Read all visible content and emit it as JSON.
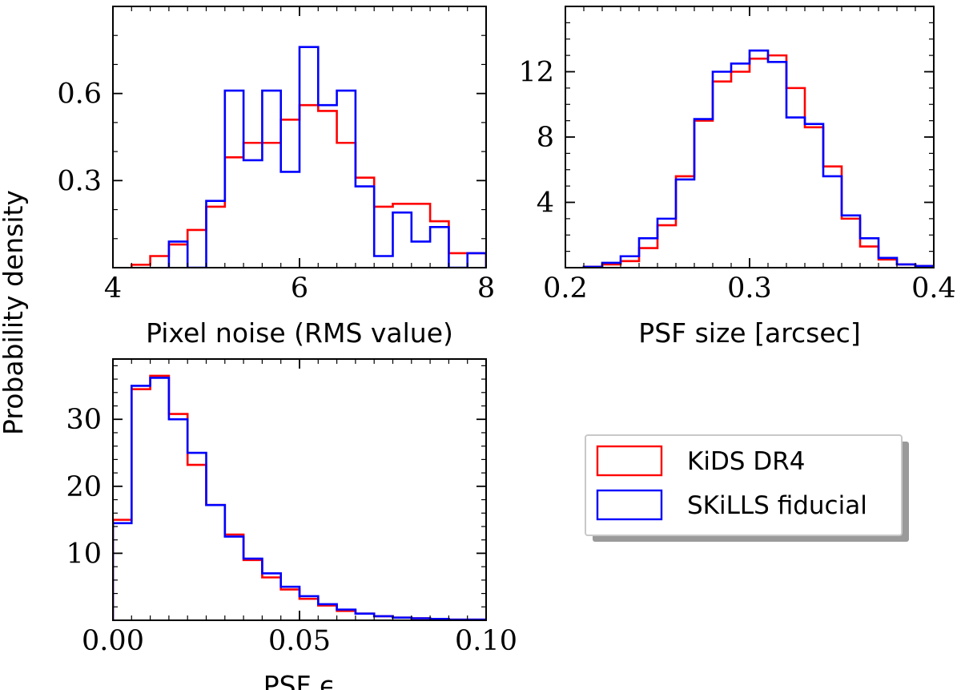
{
  "figure": {
    "shared_ylabel": "Probability density",
    "colors": {
      "kids": "#ff0000",
      "skills": "#0000ff",
      "axis": "#000000"
    }
  },
  "legend": {
    "location": "lower-right",
    "entries": [
      {
        "label": "KiDS DR4",
        "color": "#ff0000"
      },
      {
        "label": "SKiLLS fiducial",
        "color": "#0000ff"
      }
    ]
  },
  "chart_data": [
    {
      "type": "histogram-step",
      "panel": "top-left",
      "xlabel": "Pixel noise (RMS value)",
      "ylabel": "Probability density",
      "xlim": [
        4,
        8
      ],
      "ylim": [
        0,
        0.9
      ],
      "xticks": [
        4,
        6,
        8
      ],
      "xtick_labels": [
        "4",
        "6",
        "8"
      ],
      "yticks": [
        0.3,
        0.6
      ],
      "ytick_labels": [
        "0.3",
        "0.6"
      ],
      "minor_x": 0.2,
      "minor_y": 0.1,
      "series": [
        {
          "name": "KiDS DR4",
          "color": "#ff0000",
          "edges": [
            4.2,
            4.4,
            4.6,
            4.8,
            5.0,
            5.2,
            5.4,
            5.6,
            5.8,
            6.0,
            6.2,
            6.4,
            6.6,
            6.8,
            7.0,
            7.2,
            7.4,
            7.6,
            7.8,
            8.0
          ],
          "values": [
            0.01,
            0.04,
            0.08,
            0.13,
            0.21,
            0.38,
            0.43,
            0.43,
            0.51,
            0.56,
            0.54,
            0.43,
            0.31,
            0.21,
            0.22,
            0.22,
            0.16,
            0.05,
            0.05
          ]
        },
        {
          "name": "SKiLLS fiducial",
          "color": "#0000ff",
          "edges": [
            4.6,
            4.8,
            5.0,
            5.2,
            5.4,
            5.6,
            5.8,
            6.0,
            6.2,
            6.4,
            6.6,
            6.8,
            7.0,
            7.2,
            7.4,
            7.6,
            7.8,
            8.0
          ],
          "values": [
            0.09,
            0.0,
            0.23,
            0.61,
            0.37,
            0.61,
            0.33,
            0.76,
            0.56,
            0.61,
            0.28,
            0.04,
            0.19,
            0.09,
            0.14,
            0.0,
            0.05
          ]
        }
      ]
    },
    {
      "type": "histogram-step",
      "panel": "top-right",
      "xlabel": "PSF size [arcsec]",
      "ylabel": "Probability density",
      "xlim": [
        0.2,
        0.4
      ],
      "ylim": [
        0,
        16
      ],
      "xticks": [
        0.2,
        0.3,
        0.4
      ],
      "xtick_labels": [
        "0.2",
        "0.3",
        "0.4"
      ],
      "yticks": [
        4,
        8,
        12
      ],
      "ytick_labels": [
        "4",
        "8",
        "12"
      ],
      "minor_x": 0.01,
      "minor_y": 1,
      "series": [
        {
          "name": "KiDS DR4",
          "color": "#ff0000",
          "edges": [
            0.21,
            0.22,
            0.23,
            0.24,
            0.25,
            0.26,
            0.27,
            0.28,
            0.29,
            0.3,
            0.31,
            0.32,
            0.33,
            0.34,
            0.35,
            0.36,
            0.37,
            0.38,
            0.39,
            0.4
          ],
          "values": [
            0.05,
            0.2,
            0.4,
            1.2,
            2.6,
            5.6,
            9.0,
            11.4,
            12.0,
            12.8,
            13.0,
            11.0,
            8.6,
            6.2,
            3.0,
            1.3,
            0.5,
            0.2,
            0.1
          ]
        },
        {
          "name": "SKiLLS fiducial",
          "color": "#0000ff",
          "edges": [
            0.21,
            0.22,
            0.23,
            0.24,
            0.25,
            0.26,
            0.27,
            0.28,
            0.29,
            0.3,
            0.31,
            0.32,
            0.33,
            0.34,
            0.35,
            0.36,
            0.37,
            0.38,
            0.39,
            0.4
          ],
          "values": [
            0.05,
            0.3,
            0.7,
            1.8,
            3.0,
            5.4,
            9.1,
            12.0,
            12.5,
            13.3,
            12.6,
            9.2,
            8.8,
            5.6,
            3.2,
            1.8,
            0.6,
            0.2,
            0.1
          ]
        }
      ]
    },
    {
      "type": "histogram-step",
      "panel": "bottom-left",
      "xlabel": "PSF ϵ",
      "ylabel": "Probability density",
      "xlim": [
        0.0,
        0.1
      ],
      "ylim": [
        0,
        39
      ],
      "xticks": [
        0.0,
        0.05,
        0.1
      ],
      "xtick_labels": [
        "0.00",
        "0.05",
        "0.10"
      ],
      "yticks": [
        10,
        20,
        30
      ],
      "ytick_labels": [
        "10",
        "20",
        "30"
      ],
      "minor_x": 0.005,
      "minor_y": 2,
      "series": [
        {
          "name": "KiDS DR4",
          "color": "#ff0000",
          "edges": [
            0.0,
            0.005,
            0.01,
            0.015,
            0.02,
            0.025,
            0.03,
            0.035,
            0.04,
            0.045,
            0.05,
            0.055,
            0.06,
            0.065,
            0.07,
            0.075,
            0.08,
            0.085,
            0.09,
            0.095,
            0.1
          ],
          "values": [
            15.0,
            34.5,
            36.5,
            30.8,
            23.2,
            17.2,
            12.8,
            9.0,
            6.4,
            4.6,
            3.2,
            2.2,
            1.4,
            1.0,
            0.6,
            0.4,
            0.3,
            0.2,
            0.1,
            0.1
          ]
        },
        {
          "name": "SKiLLS fiducial",
          "color": "#0000ff",
          "edges": [
            0.0,
            0.005,
            0.01,
            0.015,
            0.02,
            0.025,
            0.03,
            0.035,
            0.04,
            0.045,
            0.05,
            0.055,
            0.06,
            0.065,
            0.07,
            0.075,
            0.08,
            0.085,
            0.09,
            0.095,
            0.1
          ],
          "values": [
            14.5,
            35.0,
            36.2,
            30.0,
            25.0,
            17.2,
            12.5,
            9.2,
            7.0,
            5.0,
            3.6,
            2.4,
            1.6,
            1.0,
            0.6,
            0.4,
            0.3,
            0.2,
            0.1,
            0.1
          ]
        }
      ]
    }
  ]
}
